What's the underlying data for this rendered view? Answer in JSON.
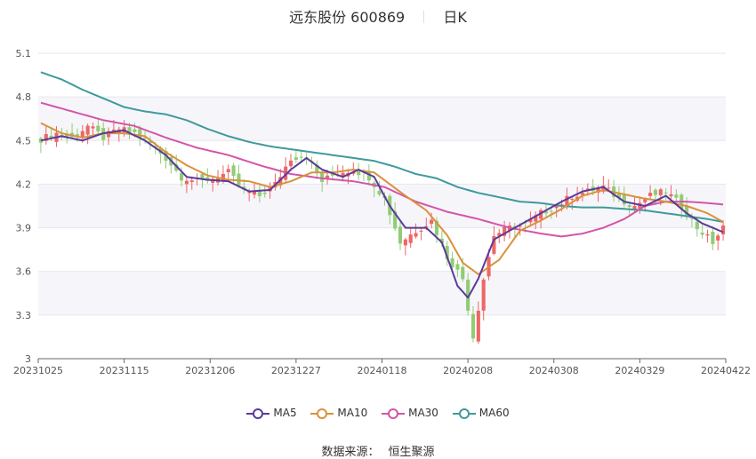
{
  "header": {
    "title": "远东股份 600869",
    "period": "日K"
  },
  "source": {
    "label": "数据来源：",
    "value": "恒生聚源"
  },
  "colors": {
    "up": "#ee6666",
    "down": "#91cc75",
    "ma5": "#5b3a98",
    "ma10": "#d9923b",
    "ma30": "#d455a8",
    "ma60": "#3f9a9c"
  },
  "chart_data": {
    "type": "candlestick",
    "ylim": [
      3,
      5.1
    ],
    "yticks": [
      3,
      3.3,
      3.6,
      3.9,
      4.2,
      4.5,
      4.8,
      5.1
    ],
    "ytick_labels": [
      "3",
      "3.3",
      "3.6",
      "3.9",
      "4.2",
      "4.5",
      "4.8",
      "5.1"
    ],
    "xticks": [
      "20231025",
      "20231115",
      "20231206",
      "20231227",
      "20240118",
      "20240208",
      "20240308",
      "20240329",
      "20240422"
    ],
    "grid": true,
    "legend_position": "bottom-center",
    "legend": [
      "MA5",
      "MA10",
      "MA30",
      "MA60"
    ],
    "anchors": {
      "close": [
        [
          0,
          4.51
        ],
        [
          3,
          4.55
        ],
        [
          6,
          4.52
        ],
        [
          9,
          4.6
        ],
        [
          12,
          4.52
        ],
        [
          15,
          4.58
        ],
        [
          18,
          4.55
        ],
        [
          21,
          4.48
        ],
        [
          24,
          4.38
        ],
        [
          27,
          4.25
        ],
        [
          30,
          4.22
        ],
        [
          33,
          4.24
        ],
        [
          36,
          4.28
        ],
        [
          39,
          4.15
        ],
        [
          42,
          4.12
        ],
        [
          45,
          4.2
        ],
        [
          48,
          4.38
        ],
        [
          51,
          4.4
        ],
        [
          54,
          4.22
        ],
        [
          57,
          4.28
        ],
        [
          60,
          4.3
        ],
        [
          63,
          4.25
        ],
        [
          66,
          4.1
        ],
        [
          69,
          3.8
        ],
        [
          72,
          3.88
        ],
        [
          75,
          3.95
        ],
        [
          78,
          3.7
        ],
        [
          81,
          3.55
        ],
        [
          83,
          3.15
        ],
        [
          85,
          3.55
        ],
        [
          87,
          3.85
        ],
        [
          90,
          3.9
        ],
        [
          93,
          3.92
        ],
        [
          96,
          4.0
        ],
        [
          99,
          4.05
        ],
        [
          102,
          4.12
        ],
        [
          105,
          4.15
        ],
        [
          108,
          4.18
        ],
        [
          111,
          4.1
        ],
        [
          114,
          4.05
        ],
        [
          117,
          4.12
        ],
        [
          120,
          4.15
        ],
        [
          123,
          4.05
        ],
        [
          126,
          3.9
        ],
        [
          129,
          3.8
        ],
        [
          131,
          3.9
        ]
      ],
      "ma5": [
        [
          0,
          4.5
        ],
        [
          4,
          4.53
        ],
        [
          8,
          4.5
        ],
        [
          12,
          4.55
        ],
        [
          16,
          4.57
        ],
        [
          20,
          4.5
        ],
        [
          24,
          4.4
        ],
        [
          28,
          4.25
        ],
        [
          32,
          4.23
        ],
        [
          36,
          4.22
        ],
        [
          40,
          4.15
        ],
        [
          44,
          4.16
        ],
        [
          48,
          4.3
        ],
        [
          51,
          4.38
        ],
        [
          54,
          4.3
        ],
        [
          58,
          4.25
        ],
        [
          61,
          4.3
        ],
        [
          64,
          4.25
        ],
        [
          67,
          4.05
        ],
        [
          70,
          3.9
        ],
        [
          74,
          3.9
        ],
        [
          77,
          3.8
        ],
        [
          80,
          3.5
        ],
        [
          82,
          3.42
        ],
        [
          84,
          3.55
        ],
        [
          87,
          3.82
        ],
        [
          90,
          3.88
        ],
        [
          95,
          3.98
        ],
        [
          100,
          4.08
        ],
        [
          104,
          4.15
        ],
        [
          108,
          4.18
        ],
        [
          112,
          4.08
        ],
        [
          116,
          4.05
        ],
        [
          120,
          4.12
        ],
        [
          124,
          4.0
        ],
        [
          127,
          3.93
        ],
        [
          131,
          3.87
        ]
      ],
      "ma10": [
        [
          0,
          4.62
        ],
        [
          4,
          4.55
        ],
        [
          8,
          4.52
        ],
        [
          12,
          4.55
        ],
        [
          16,
          4.55
        ],
        [
          20,
          4.53
        ],
        [
          24,
          4.42
        ],
        [
          28,
          4.33
        ],
        [
          32,
          4.26
        ],
        [
          36,
          4.23
        ],
        [
          40,
          4.22
        ],
        [
          44,
          4.18
        ],
        [
          48,
          4.22
        ],
        [
          52,
          4.28
        ],
        [
          56,
          4.28
        ],
        [
          60,
          4.3
        ],
        [
          64,
          4.28
        ],
        [
          67,
          4.2
        ],
        [
          70,
          4.12
        ],
        [
          74,
          4.02
        ],
        [
          78,
          3.85
        ],
        [
          81,
          3.66
        ],
        [
          84,
          3.58
        ],
        [
          88,
          3.68
        ],
        [
          92,
          3.88
        ],
        [
          96,
          3.95
        ],
        [
          100,
          4.03
        ],
        [
          104,
          4.12
        ],
        [
          108,
          4.16
        ],
        [
          112,
          4.13
        ],
        [
          116,
          4.1
        ],
        [
          120,
          4.08
        ],
        [
          124,
          4.05
        ],
        [
          128,
          4.0
        ],
        [
          131,
          3.94
        ]
      ],
      "ma30": [
        [
          0,
          4.76
        ],
        [
          6,
          4.7
        ],
        [
          12,
          4.64
        ],
        [
          18,
          4.6
        ],
        [
          24,
          4.52
        ],
        [
          30,
          4.45
        ],
        [
          36,
          4.4
        ],
        [
          42,
          4.33
        ],
        [
          48,
          4.27
        ],
        [
          54,
          4.24
        ],
        [
          60,
          4.22
        ],
        [
          66,
          4.18
        ],
        [
          72,
          4.08
        ],
        [
          78,
          4.01
        ],
        [
          84,
          3.96
        ],
        [
          90,
          3.9
        ],
        [
          96,
          3.86
        ],
        [
          100,
          3.84
        ],
        [
          104,
          3.86
        ],
        [
          108,
          3.9
        ],
        [
          112,
          3.96
        ],
        [
          116,
          4.05
        ],
        [
          120,
          4.08
        ],
        [
          124,
          4.08
        ],
        [
          128,
          4.07
        ],
        [
          131,
          4.06
        ]
      ],
      "ma60": [
        [
          0,
          4.97
        ],
        [
          4,
          4.92
        ],
        [
          8,
          4.85
        ],
        [
          12,
          4.79
        ],
        [
          16,
          4.73
        ],
        [
          20,
          4.7
        ],
        [
          24,
          4.68
        ],
        [
          28,
          4.64
        ],
        [
          32,
          4.58
        ],
        [
          36,
          4.53
        ],
        [
          40,
          4.49
        ],
        [
          44,
          4.46
        ],
        [
          48,
          4.44
        ],
        [
          52,
          4.42
        ],
        [
          56,
          4.4
        ],
        [
          60,
          4.38
        ],
        [
          64,
          4.36
        ],
        [
          68,
          4.32
        ],
        [
          72,
          4.27
        ],
        [
          76,
          4.24
        ],
        [
          80,
          4.18
        ],
        [
          84,
          4.14
        ],
        [
          88,
          4.11
        ],
        [
          92,
          4.08
        ],
        [
          96,
          4.07
        ],
        [
          100,
          4.05
        ],
        [
          104,
          4.04
        ],
        [
          108,
          4.04
        ],
        [
          112,
          4.03
        ],
        [
          116,
          4.02
        ],
        [
          120,
          4.0
        ],
        [
          124,
          3.98
        ],
        [
          128,
          3.96
        ],
        [
          131,
          3.94
        ]
      ]
    }
  }
}
